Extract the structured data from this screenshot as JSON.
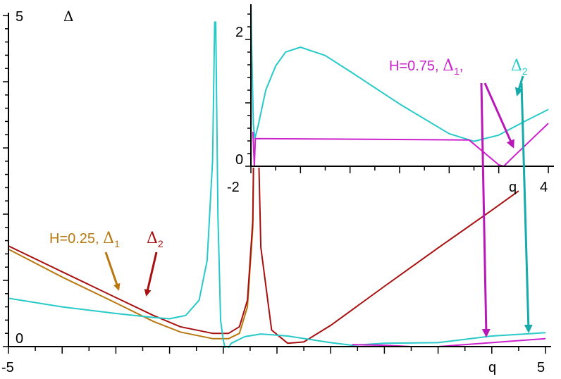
{
  "colors": {
    "axis": "#000000",
    "cyan": "#27c9c9",
    "red": "#a81010",
    "orange": "#b87810",
    "magenta": "#cc22cc",
    "teal_arrow": "#16aaaa",
    "magenta_arrow": "#b818b8",
    "background": "#ffffff"
  },
  "chart_data": [
    {
      "type": "line",
      "title": "",
      "xlabel": "q",
      "ylabel": "Δ",
      "xlim": [
        -5,
        5
      ],
      "ylim": [
        0,
        5
      ],
      "x_tick_labels": [
        "-5",
        "5"
      ],
      "y_tick_labels": [
        "0",
        "5"
      ],
      "series": [
        {
          "name": "H=0.25, Δ1",
          "color": "orange",
          "points": [
            [
              -5,
              1.47
            ],
            [
              -4,
              1.05
            ],
            [
              -3,
              0.66
            ],
            [
              -2.3,
              0.38
            ],
            [
              -1.8,
              0.22
            ],
            [
              -1.2,
              0.12
            ],
            [
              -0.9,
              0.12
            ],
            [
              -0.7,
              0.2
            ],
            [
              -0.55,
              0.6
            ],
            [
              -0.45,
              1.8
            ],
            [
              -0.41,
              4.6
            ]
          ]
        },
        {
          "name": "Δ2",
          "color": "red",
          "points": [
            [
              -5,
              1.52
            ],
            [
              -4,
              1.13
            ],
            [
              -3,
              0.74
            ],
            [
              -2.3,
              0.47
            ],
            [
              -1.8,
              0.3
            ],
            [
              -1.2,
              0.2
            ],
            [
              -0.9,
              0.2
            ],
            [
              -0.7,
              0.3
            ],
            [
              -0.55,
              0.7
            ],
            [
              -0.45,
              1.9
            ],
            [
              -0.41,
              4.6
            ],
            [
              -0.39,
              4.6
            ],
            [
              -0.3,
              1.5
            ],
            [
              -0.1,
              0.25
            ],
            [
              0.2,
              0.05
            ],
            [
              0.5,
              0.07
            ],
            [
              1,
              0.32
            ],
            [
              2,
              0.91
            ],
            [
              3,
              1.49
            ],
            [
              4,
              2.06
            ],
            [
              4.5,
              2.35
            ]
          ]
        },
        {
          "name": "",
          "color": "cyan",
          "points": [
            [
              -5,
              0.73
            ],
            [
              -4,
              0.6
            ],
            [
              -3,
              0.5
            ],
            [
              -2.3,
              0.44
            ],
            [
              -2,
              0.42
            ],
            [
              -1.7,
              0.47
            ],
            [
              -1.45,
              0.7
            ],
            [
              -1.3,
              1.3
            ],
            [
              -1.2,
              2.8
            ],
            [
              -1.16,
              4.9
            ],
            [
              -1.14,
              4.9
            ],
            [
              -1.1,
              2
            ],
            [
              -1.05,
              0.4
            ],
            [
              -1.0,
              0.1
            ],
            [
              -0.95,
              -0.08
            ],
            [
              -0.85,
              0.05
            ],
            [
              -0.6,
              0.15
            ],
            [
              -0.3,
              0.19
            ],
            [
              0.2,
              0.16
            ],
            [
              1.0,
              0.06
            ],
            [
              1.4,
              0.02
            ],
            [
              2,
              0.05
            ],
            [
              3,
              0.06
            ],
            [
              4,
              0.16
            ],
            [
              5,
              0.21
            ]
          ]
        },
        {
          "name": "H=0.75, Δ1",
          "color": "magenta",
          "points": [
            [
              1.4,
              0.03
            ],
            [
              2,
              0.02
            ],
            [
              2.5,
              0.0
            ],
            [
              3,
              0.0
            ],
            [
              4,
              0.06
            ],
            [
              5,
              0.12
            ]
          ]
        }
      ],
      "annotations": [
        {
          "text": "H=0.25, ",
          "sym": "Δ",
          "sub": "1",
          "color": "orange"
        },
        {
          "text": "",
          "sym": "Δ",
          "sub": "2",
          "color": "red"
        }
      ]
    },
    {
      "type": "line",
      "title": "",
      "xlabel": "q",
      "ylabel": "",
      "xlim": [
        -2,
        4
      ],
      "ylim": [
        0,
        2.3
      ],
      "x_tick_labels": [
        "-2",
        "4"
      ],
      "y_tick_labels": [
        "0",
        "2"
      ],
      "series": [
        {
          "name": "Δ2",
          "color": "cyan",
          "points": [
            [
              -2,
              2.35
            ],
            [
              -1.98,
              1.6
            ],
            [
              -1.95,
              0.6
            ],
            [
              -1.92,
              0.4
            ],
            [
              -1.85,
              0.6
            ],
            [
              -1.7,
              1.1
            ],
            [
              -1.5,
              1.45
            ],
            [
              -1.3,
              1.65
            ],
            [
              -1.0,
              1.72
            ],
            [
              -0.5,
              1.6
            ],
            [
              0,
              1.37
            ],
            [
              1,
              0.9
            ],
            [
              2,
              0.47
            ],
            [
              2.5,
              0.36
            ],
            [
              3,
              0.45
            ],
            [
              3.5,
              0.64
            ],
            [
              4,
              0.82
            ]
          ]
        },
        {
          "name": "H=0.75, Δ1",
          "color": "magenta",
          "points": [
            [
              -1.96,
              0.5
            ],
            [
              -1.93,
              0.0
            ],
            [
              -1.91,
              0.4
            ],
            [
              2.4,
              0.38
            ],
            [
              3.0,
              0.02
            ],
            [
              3.1,
              0.0
            ],
            [
              3.3,
              0.14
            ],
            [
              4,
              0.62
            ]
          ]
        }
      ],
      "annotations": [
        {
          "text": "H=0.75, ",
          "sym": "Δ",
          "sub": "1",
          "color": "magenta",
          "tail": ", "
        },
        {
          "text": "",
          "sym": "Δ",
          "sub": "2",
          "color": "cyan"
        }
      ]
    }
  ]
}
